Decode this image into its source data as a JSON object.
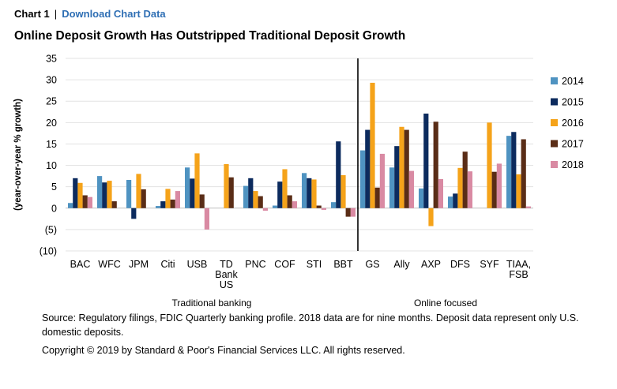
{
  "header": {
    "chart_label": "Chart 1",
    "separator": "|",
    "download_link": "Download Chart Data"
  },
  "title": "Online Deposit Growth Has Outstripped Traditional Deposit Growth",
  "chart_data": {
    "type": "bar",
    "ylabel": "(year-over-year % growth)",
    "ylim": [
      -10,
      35
    ],
    "yticks": [
      35,
      30,
      25,
      20,
      15,
      10,
      5,
      0,
      -5,
      -10
    ],
    "ytick_labels": [
      "35",
      "30",
      "25",
      "20",
      "15",
      "10",
      "5",
      "0",
      "(5)",
      "(10)"
    ],
    "grid": true,
    "legend_position": "right",
    "categories": [
      [
        "BAC"
      ],
      [
        "WFC"
      ],
      [
        "JPM"
      ],
      [
        "Citi"
      ],
      [
        "USB"
      ],
      [
        "TD",
        "Bank",
        "US"
      ],
      [
        "PNC"
      ],
      [
        "COF"
      ],
      [
        "STI"
      ],
      [
        "BBT"
      ],
      [
        "GS"
      ],
      [
        "Ally"
      ],
      [
        "AXP"
      ],
      [
        "DFS"
      ],
      [
        "SYF"
      ],
      [
        "TIAA,",
        "FSB"
      ]
    ],
    "groups": [
      {
        "label": "Traditional banking",
        "start": 0,
        "end": 9
      },
      {
        "label": "Online focused",
        "start": 10,
        "end": 15
      }
    ],
    "divider_after_index": 9,
    "series": [
      {
        "name": "2014",
        "color": "#4f93c1",
        "values": [
          1.2,
          7.5,
          6.6,
          0.5,
          9.5,
          0,
          5.2,
          0.6,
          8.2,
          1.4,
          13.5,
          9.5,
          4.6,
          2.7,
          0,
          16.9
        ]
      },
      {
        "name": "2015",
        "color": "#0c2b5e",
        "values": [
          7.0,
          6.0,
          -2.5,
          1.6,
          6.9,
          0,
          7.0,
          6.2,
          7.0,
          15.6,
          18.3,
          14.5,
          22.1,
          3.4,
          0,
          17.8
        ]
      },
      {
        "name": "2016",
        "color": "#f5a31a",
        "values": [
          5.9,
          6.4,
          8.0,
          4.5,
          12.8,
          10.3,
          4.0,
          9.1,
          6.7,
          7.7,
          29.3,
          19.0,
          -4.2,
          9.4,
          20.0,
          7.9
        ]
      },
      {
        "name": "2017",
        "color": "#5a2d17",
        "values": [
          3.0,
          1.6,
          4.4,
          2.0,
          3.2,
          7.2,
          2.8,
          3.0,
          0.6,
          -2.0,
          4.8,
          18.3,
          20.2,
          13.2,
          8.5,
          16.1
        ]
      },
      {
        "name": "2018",
        "color": "#d98aa3",
        "values": [
          2.6,
          0,
          0,
          4.0,
          -5.0,
          0,
          -0.6,
          1.6,
          -0.4,
          -2.0,
          12.7,
          8.7,
          6.8,
          8.6,
          10.4,
          0.4
        ]
      }
    ]
  },
  "footnotes": {
    "source": "Source: Regulatory filings, FDIC Quarterly banking profile. 2018 data are for nine months. Deposit data represent only U.S. domestic deposits.",
    "copyright": "Copyright © 2019 by Standard & Poor's Financial Services LLC. All rights reserved."
  }
}
